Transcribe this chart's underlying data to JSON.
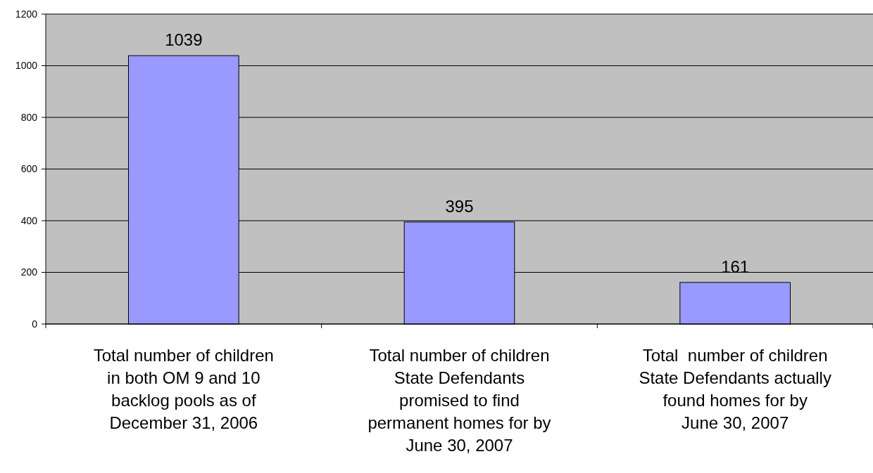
{
  "chart_data": {
    "type": "bar",
    "categories": [
      "Total number of children\nin both OM 9 and 10\nbacklog pools as of\nDecember 31, 2006",
      "Total number of children\nState Defendants\npromised to find\npermanent homes for by\nJune 30, 2007",
      "Total  number of children\nState Defendants actually\nfound homes for by\nJune 30, 2007"
    ],
    "values": [
      1039,
      395,
      161
    ],
    "color": "#9999ff",
    "ylim": [
      0,
      1200
    ],
    "yticks": [
      0,
      200,
      400,
      600,
      800,
      1000,
      1200
    ],
    "grid": "y",
    "data_labels": true
  }
}
